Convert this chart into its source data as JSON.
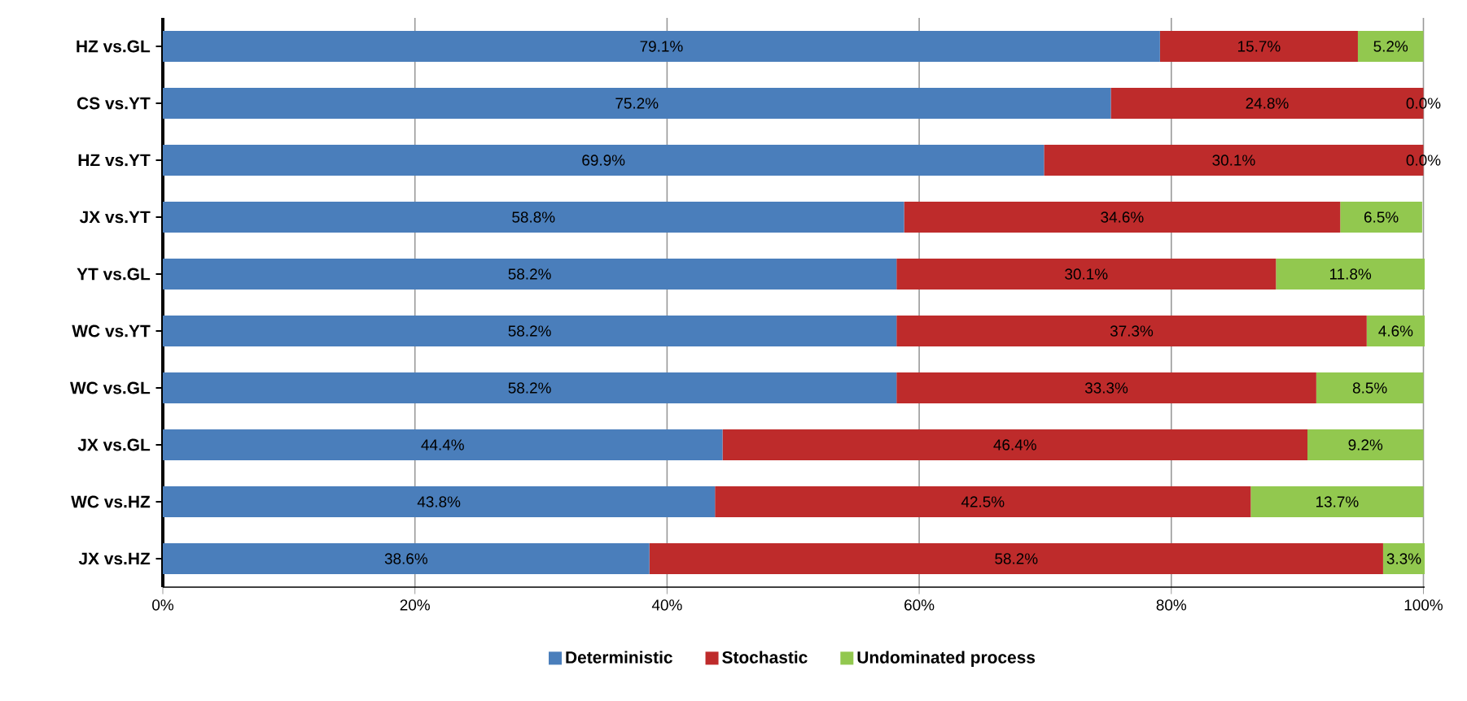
{
  "chart_data": {
    "type": "bar",
    "orientation": "horizontal",
    "stacked": true,
    "categories": [
      "HZ vs.GL",
      "CS vs.YT",
      "HZ vs.YT",
      "JX vs.YT",
      "YT vs.GL",
      "WC vs.YT",
      "WC vs.GL",
      "JX vs.GL",
      "WC vs.HZ",
      "JX vs.HZ"
    ],
    "series": [
      {
        "name": "Deterministic",
        "color": "#4a7ebb",
        "values": [
          79.1,
          75.2,
          69.9,
          58.8,
          58.2,
          58.2,
          58.2,
          44.4,
          43.8,
          38.6
        ],
        "value_labels": [
          "79.1%",
          "75.2%",
          "69.9%",
          "58.8%",
          "58.2%",
          "58.2%",
          "58.2%",
          "44.4%",
          "43.8%",
          "38.6%"
        ]
      },
      {
        "name": "Stochastic",
        "color": "#be2b2b",
        "values": [
          15.7,
          24.8,
          30.1,
          34.6,
          30.1,
          37.3,
          33.3,
          46.4,
          42.5,
          58.2
        ],
        "value_labels": [
          "15.7%",
          "24.8%",
          "30.1%",
          "34.6%",
          "30.1%",
          "37.3%",
          "33.3%",
          "46.4%",
          "42.5%",
          "58.2%"
        ]
      },
      {
        "name": "Undominated process",
        "color": "#92c84f",
        "values": [
          5.2,
          0.0,
          0.0,
          6.5,
          11.8,
          4.6,
          8.5,
          9.2,
          13.7,
          3.3
        ],
        "value_labels": [
          "5.2%",
          "0.0%",
          "0.0%",
          "6.5%",
          "11.8%",
          "4.6%",
          "8.5%",
          "9.2%",
          "13.7%",
          "3.3%"
        ]
      }
    ],
    "xlim": [
      0,
      100.1
    ],
    "xticks": [
      {
        "value": 0,
        "label": "0%"
      },
      {
        "value": 20,
        "label": "20%"
      },
      {
        "value": 40,
        "label": "40%"
      },
      {
        "value": 60,
        "label": "60%"
      },
      {
        "value": 80,
        "label": "80%"
      },
      {
        "value": 100,
        "label": "100%"
      }
    ],
    "grid": "x",
    "legend": "bottom"
  }
}
